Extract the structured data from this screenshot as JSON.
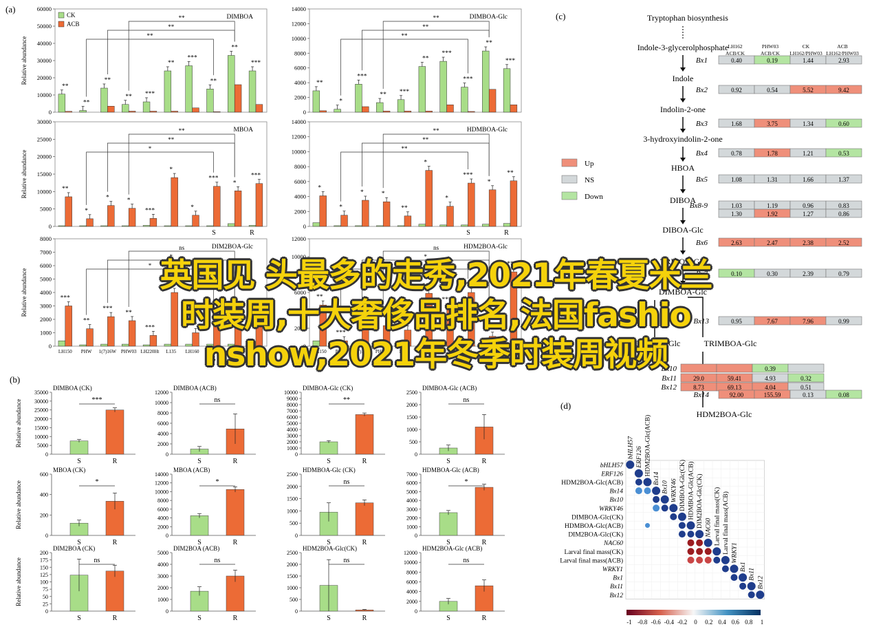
{
  "panel_labels": {
    "a": "(a)",
    "b": "(b)",
    "c": "(c)",
    "d": "(d)"
  },
  "colors": {
    "ck": "#a8dd88",
    "acb": "#ec6b36",
    "up": "#ef8f7a",
    "ns": "#d3d8da",
    "down": "#b4e5a2"
  },
  "panel_a": {
    "ylabel": "Relative abundance",
    "legend": {
      "ck": "CK",
      "acb": "ACB"
    },
    "charts": [
      {
        "title": "DIMBOA",
        "ymax": 60000,
        "yticks": [
          "0",
          "10000",
          "20000",
          "30000",
          "40000",
          "50000",
          "60000"
        ],
        "ck": [
          10500,
          1000,
          14000,
          4500,
          6000,
          24000,
          27000,
          13500,
          33000,
          24000
        ],
        "acb": [
          500,
          0,
          3500,
          600,
          600,
          600,
          2500,
          300,
          16000,
          4500
        ],
        "sig": [
          "**",
          "**",
          "**",
          "**",
          "***",
          "**",
          "***",
          "**",
          "**",
          "***"
        ],
        "brackets": [
          "**",
          "**",
          "**"
        ],
        "xlabels": [],
        "sr": [
          "",
          ""
        ]
      },
      {
        "title": "DIMBOA-Glc",
        "ymax": 14000,
        "yticks": [
          "0",
          "2000",
          "4000",
          "6000",
          "8000",
          "10000",
          "12000",
          "14000"
        ],
        "ck": [
          2900,
          400,
          3800,
          1300,
          1700,
          6200,
          6900,
          3400,
          8300,
          5900
        ],
        "acb": [
          200,
          0,
          750,
          150,
          150,
          150,
          1000,
          100,
          3100,
          1000
        ],
        "sig": [
          "**",
          "*",
          "***",
          "**",
          "***",
          "**",
          "***",
          "***",
          "**",
          "***"
        ],
        "brackets": [
          "**",
          "**",
          "**"
        ],
        "xlabels": [],
        "sr": [
          "",
          ""
        ]
      },
      {
        "title": "MBOA",
        "ymax": 30000,
        "yticks": [
          "0",
          "5000",
          "10000",
          "15000",
          "20000",
          "25000",
          "30000"
        ],
        "ck": [
          200,
          200,
          200,
          200,
          300,
          200,
          200,
          200,
          800,
          300
        ],
        "acb": [
          8500,
          2200,
          6000,
          5200,
          2300,
          14000,
          3200,
          11500,
          10200,
          12300
        ],
        "sig": [
          "**",
          "*",
          "*",
          "*",
          "***",
          "*",
          "*",
          "***",
          "*",
          "***"
        ],
        "brackets": [
          "**",
          "**",
          "*"
        ],
        "xlabels": [],
        "sr": [
          "S",
          "R"
        ]
      },
      {
        "title": "HDMBOA-Glc",
        "ymax": 14000,
        "yticks": [
          "0",
          "2000",
          "4000",
          "6000",
          "8000",
          "10000",
          "12000",
          "14000"
        ],
        "ck": [
          500,
          100,
          100,
          100,
          100,
          300,
          200,
          200,
          300,
          400
        ],
        "acb": [
          4100,
          1500,
          3500,
          3300,
          1400,
          7500,
          2700,
          5800,
          4900,
          6100
        ],
        "sig": [
          "*",
          "*",
          "*",
          "*",
          "**",
          "*",
          "*",
          "***",
          "*",
          "**"
        ],
        "brackets": [
          "**",
          "**",
          "**"
        ],
        "xlabels": [],
        "sr": [
          "S",
          "R"
        ]
      },
      {
        "title": "DIM2BOA-Glc",
        "ymax": 8000,
        "yticks": [
          "0",
          "1000",
          "2000",
          "3000",
          "4000",
          "5000",
          "6000",
          "7000",
          "8000"
        ],
        "ck": [
          400,
          100,
          150,
          150,
          100,
          150,
          150,
          150,
          150,
          300
        ],
        "acb": [
          3000,
          1300,
          2200,
          1900,
          800,
          4000,
          1000,
          2400,
          2700,
          2500
        ],
        "sig": [
          "***",
          "**",
          "***",
          "**",
          "***",
          "***",
          "***",
          "***",
          "**",
          "***"
        ],
        "brackets": [
          "ns",
          "*",
          "*"
        ],
        "xlabels": [
          "LH150",
          "PHW",
          "1(7)16W",
          "PHW03",
          "LH220Ht",
          "L135",
          "LH160",
          "B73",
          "LH162",
          "PHV35"
        ],
        "sr": [
          "S",
          "R"
        ]
      },
      {
        "title": "HDM2BOA-Glc",
        "ymax": 12000,
        "yticks": [
          "0",
          "2000",
          "4000",
          "6000",
          "8000",
          "10000",
          "12000"
        ],
        "ck": [
          600,
          100,
          100,
          100,
          100,
          150,
          150,
          150,
          150,
          300
        ],
        "acb": [
          4600,
          600,
          2500,
          2300,
          1800,
          5900,
          4300,
          6000,
          1100,
          8300
        ],
        "sig": [
          "**",
          "***",
          "***",
          "**",
          "***",
          "**",
          "***",
          "**",
          "*",
          "**"
        ],
        "brackets": [
          "ns",
          "*",
          "*"
        ],
        "xlabels": [
          "LH150",
          "PHW",
          "1(7)16W",
          "PHW03",
          "L135",
          "LH160",
          "LH220Ht",
          "B73",
          "LH162",
          "PHV35"
        ],
        "sr": [
          "S",
          "R"
        ]
      }
    ]
  },
  "panel_b": {
    "ylabel": "Relative abundance",
    "xcats": [
      "S",
      "R"
    ],
    "charts": [
      {
        "title": "DIMBOA (CK)",
        "ymax": 35000,
        "yticks": [
          "0",
          "5000",
          "10000",
          "15000",
          "20000",
          "25000",
          "30000",
          "35000"
        ],
        "values": [
          7500,
          25000
        ],
        "err": [
          800,
          1200
        ],
        "sig": "***"
      },
      {
        "title": "DIMBOA (ACB)",
        "ymax": 12000,
        "yticks": [
          "0",
          "2000",
          "4000",
          "6000",
          "8000",
          "10000",
          "12000"
        ],
        "values": [
          1000,
          4900
        ],
        "err": [
          500,
          2900
        ],
        "sig": "ns"
      },
      {
        "title": "DIMBOA-Glc (CK)",
        "ymax": 10000,
        "yticks": [
          "0",
          "1000",
          "2000",
          "3000",
          "4000",
          "5000",
          "6000",
          "7000",
          "8000",
          "9000",
          "10000"
        ],
        "values": [
          2000,
          6400
        ],
        "err": [
          200,
          250
        ],
        "sig": "**"
      },
      {
        "title": "DIMBOA-Glc (ACB)",
        "ymax": 2500,
        "yticks": [
          "0",
          "500",
          "1000",
          "1500",
          "2000",
          "2500"
        ],
        "values": [
          250,
          1100
        ],
        "err": [
          120,
          500
        ],
        "sig": "ns"
      },
      {
        "title": "MBOA (CK)",
        "ymax": 600,
        "yticks": [
          "0",
          "200",
          "400",
          "600"
        ],
        "values": [
          120,
          335
        ],
        "err": [
          30,
          80
        ],
        "sig": "*"
      },
      {
        "title": "MBOA (ACB)",
        "ymax": 14000,
        "yticks": [
          "0",
          "2000",
          "4000",
          "6000",
          "8000",
          "10000",
          "12000",
          "14000"
        ],
        "values": [
          4500,
          10500
        ],
        "err": [
          500,
          600
        ],
        "sig": "*"
      },
      {
        "title": "HDMBOA-Glc (CK)",
        "ymax": 2500,
        "yticks": [
          "0",
          "500",
          "1000",
          "1500",
          "2000",
          "2500"
        ],
        "values": [
          950,
          1330
        ],
        "err": [
          380,
          120
        ],
        "sig": "ns"
      },
      {
        "title": "HDMBOA-Glc (ACB)",
        "ymax": 7000,
        "yticks": [
          "0",
          "1000",
          "2000",
          "3000",
          "4000",
          "5000",
          "6000",
          "7000"
        ],
        "values": [
          2600,
          5500
        ],
        "err": [
          250,
          350
        ],
        "sig": "*"
      },
      {
        "title": "DIM2BOA (CK)",
        "ymax": 200,
        "yticks": [
          "0",
          "25",
          "50",
          "75",
          "100",
          "125",
          "150",
          "175",
          "200"
        ],
        "values": [
          123,
          137
        ],
        "err": [
          55,
          20
        ],
        "sig": "ns"
      },
      {
        "title": "DIM2BOA (ACB)",
        "ymax": 5000,
        "yticks": [
          "0",
          "1000",
          "2000",
          "3000",
          "4000",
          "5000"
        ],
        "values": [
          1700,
          3000
        ],
        "err": [
          380,
          500
        ],
        "sig": "ns"
      },
      {
        "title": "HDM2BOA-Glc(CK)",
        "ymax": 2500,
        "yticks": [
          "0",
          "500",
          "1000",
          "1500",
          "2000",
          "2500"
        ],
        "values": [
          1100,
          50
        ],
        "err": [
          1100,
          20
        ],
        "sig": "ns"
      },
      {
        "title": "HDM2BOA-Glc (ACB)",
        "ymax": 12000,
        "yticks": [
          "0",
          "2000",
          "4000",
          "6000",
          "8000",
          "10000",
          "12000"
        ],
        "values": [
          2000,
          5200
        ],
        "err": [
          600,
          1200
        ],
        "sig": "ns"
      }
    ]
  },
  "panel_c": {
    "pathway": [
      "Tryptophan biosynthesis",
      "Indole-3-glycerolphosphate",
      "Indole",
      "Indolin-2-one",
      "3-hydroxyindolin-2-one",
      "HBOA",
      "DIBOA",
      "DIBOA-Glc",
      "TRIBOA-Glc",
      "DIMBOA-Glc",
      "HDMBOA-Glc",
      "TRIMBOA-Glc",
      "DIM2BOA-Glc",
      "HDM2BOA-Glc"
    ],
    "col_headers": [
      "LH162 ACB/CK",
      "PHW03 ACB/CK",
      "CK LH162/PHW03",
      "ACB LH162/PHW03"
    ],
    "legend": [
      "Up",
      "NS",
      "Down"
    ],
    "genes": [
      {
        "name": "Bx1",
        "values": [
          "0.40",
          "0.19",
          "1.44",
          "2.93"
        ],
        "status": [
          "ns",
          "down",
          "ns",
          "ns"
        ]
      },
      {
        "name": "Bx2",
        "values": [
          "0.92",
          "0.54",
          "5.52",
          "9.42"
        ],
        "status": [
          "ns",
          "ns",
          "up",
          "up"
        ]
      },
      {
        "name": "Bx3",
        "values": [
          "1.68",
          "3.75",
          "1.34",
          "0.60"
        ],
        "status": [
          "ns",
          "up",
          "ns",
          "down"
        ]
      },
      {
        "name": "Bx4",
        "values": [
          "0.78",
          "1.78",
          "1.21",
          "0.53"
        ],
        "status": [
          "ns",
          "up",
          "ns",
          "down"
        ]
      },
      {
        "name": "Bx5",
        "values": [
          "1.08",
          "1.31",
          "1.66",
          "1.37"
        ],
        "status": [
          "ns",
          "ns",
          "ns",
          "ns"
        ]
      },
      {
        "name": "Bx8-9",
        "values": [
          "1.03",
          "1.19",
          "0.96",
          "0.83"
        ],
        "status": [
          "ns",
          "ns",
          "ns",
          "ns"
        ]
      },
      {
        "name": "",
        "values": [
          "1.30",
          "1.92",
          "1.27",
          "0.86"
        ],
        "status": [
          "ns",
          "up",
          "ns",
          "ns"
        ]
      },
      {
        "name": "Bx6",
        "values": [
          "2.63",
          "2.47",
          "2.38",
          "2.52"
        ],
        "status": [
          "up",
          "up",
          "up",
          "up"
        ]
      },
      {
        "name": "Bx7",
        "values": [
          "0.10",
          "0.30",
          "2.39",
          "0.79"
        ],
        "status": [
          "down",
          "ns",
          "ns",
          "ns"
        ]
      },
      {
        "name": "Bx10",
        "values": [
          "",
          "",
          "0.39",
          ""
        ],
        "status": [
          "up",
          "up",
          "down",
          "ns"
        ]
      },
      {
        "name": "Bx11",
        "values": [
          "29.0",
          "59.41",
          "4.93",
          "0.32"
        ],
        "status": [
          "up",
          "up",
          "ns",
          "down"
        ]
      },
      {
        "name": "Bx12",
        "values": [
          "8.73",
          "69.13",
          "4.04",
          "0.51"
        ],
        "status": [
          "up",
          "up",
          "up",
          "ns"
        ]
      },
      {
        "name": "Bx13",
        "values": [
          "0.95",
          "7.67",
          "7.96",
          "0.99"
        ],
        "status": [
          "ns",
          "up",
          "up",
          "ns"
        ]
      },
      {
        "name": "Bx14",
        "values": [
          "92.00",
          "155.59",
          "0.13",
          "0.08"
        ],
        "status": [
          "up",
          "up",
          "ns",
          "down"
        ]
      }
    ],
    "side_labels": [
      "DIMBOA-Glc",
      "Bx7",
      "Bx13"
    ]
  },
  "panel_d": {
    "labels": [
      "bHLH57",
      "ERF126",
      "HDM2BOA-Glc(ACB)",
      "Bx14",
      "Bx10",
      "WRKY46",
      "DIMBOA-Glc(CK)",
      "HDMBOA-Glc(ACB)",
      "DIM2BOA-Glc(CK)",
      "NAC60",
      "Larval final mass(CK)",
      "Larval final mass(ACB)",
      "WRKY1",
      "Bx1",
      "Bx11",
      "Bx12"
    ],
    "italic": [
      true,
      true,
      false,
      true,
      true,
      true,
      false,
      false,
      false,
      true,
      false,
      false,
      true,
      true,
      true,
      true
    ],
    "scale_ticks": [
      "-1",
      "-0.8",
      "-0.6",
      "-0.4",
      "-0.2",
      "0",
      "0.2",
      "0.4",
      "0.6",
      "0.8",
      "1"
    ]
  },
  "overlay": {
    "line1": "英国见 头最多的走秀,2021年春夏米兰",
    "line2": "时装周,十大奢侈品排名,法国fashio",
    "line3": "nshow,2021年冬季时装周视频"
  }
}
